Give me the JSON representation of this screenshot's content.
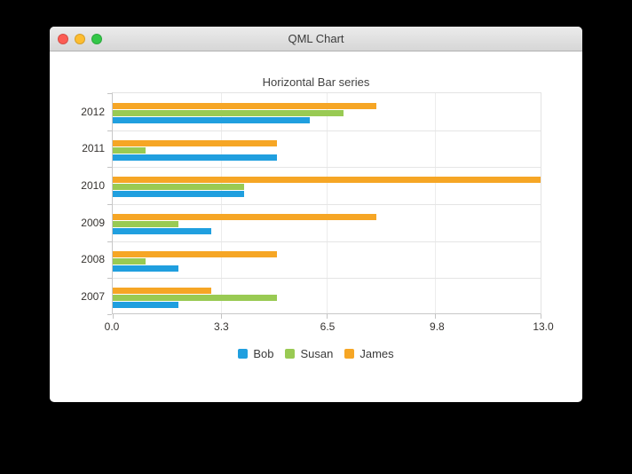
{
  "window": {
    "title": "QML Chart",
    "traffic_lights": [
      {
        "name": "close",
        "color": "#fc5c54"
      },
      {
        "name": "minimize",
        "color": "#fdbd30"
      },
      {
        "name": "zoom",
        "color": "#33c748"
      }
    ]
  },
  "chart_data": {
    "type": "bar",
    "orientation": "horizontal",
    "title": "Horizontal Bar series",
    "categories": [
      "2012",
      "2011",
      "2010",
      "2009",
      "2008",
      "2007"
    ],
    "series": [
      {
        "name": "Bob",
        "color": "#209fdf",
        "values": [
          6,
          5,
          4,
          3,
          2,
          2
        ]
      },
      {
        "name": "Susan",
        "color": "#99ca53",
        "values": [
          7,
          1,
          4,
          2,
          1,
          5
        ]
      },
      {
        "name": "James",
        "color": "#f6a625",
        "values": [
          8,
          5,
          13,
          8,
          5,
          3
        ]
      }
    ],
    "x_ticks": [
      "0.0",
      "3.3",
      "6.5",
      "9.8",
      "13.0"
    ],
    "x_tick_values": [
      0,
      3.3,
      6.5,
      9.8,
      13
    ],
    "xlim": [
      0,
      13
    ],
    "grid": true,
    "legend_position": "bottom"
  }
}
